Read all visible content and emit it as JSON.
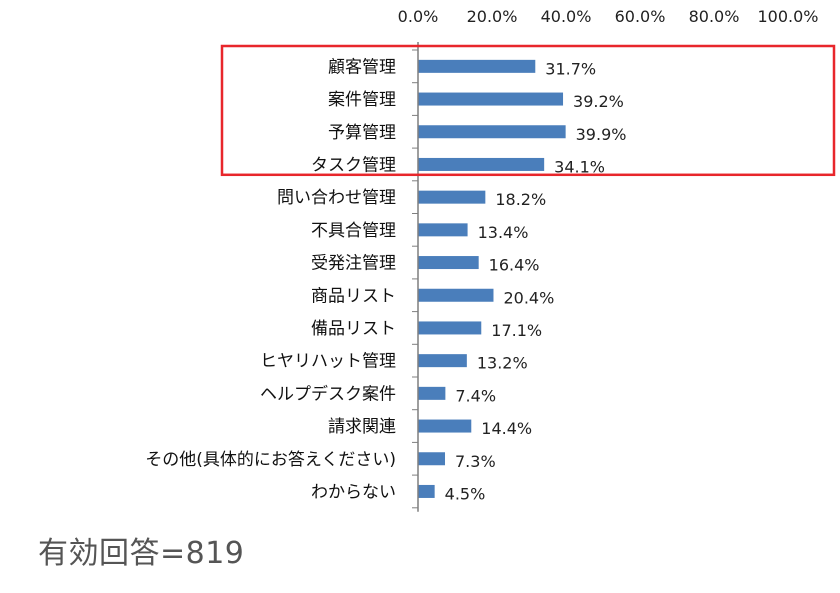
{
  "colors": {
    "bar": "#4a7ebb",
    "highlight_box": "#e8262b",
    "axis": "#7f7f7f",
    "text": "#222222",
    "footnote": "#555555"
  },
  "footnote": "有効回答=819",
  "chart_data": {
    "type": "bar",
    "orientation": "horizontal",
    "xlim": [
      0,
      100
    ],
    "x_ticks": [
      "0.0%",
      "20.0%",
      "40.0%",
      "60.0%",
      "80.0%",
      "100.0%"
    ],
    "x_tick_values": [
      0,
      20,
      40,
      60,
      80,
      100
    ],
    "x_axis_position": "top",
    "grid": false,
    "categories": [
      "顧客管理",
      "案件管理",
      "予算管理",
      "タスク管理",
      "問い合わせ管理",
      "不具合管理",
      "受発注管理",
      "商品リスト",
      "備品リスト",
      "ヒヤリハット管理",
      "ヘルプデスク案件",
      "請求関連",
      "その他(具体的にお答えください)",
      "わからない"
    ],
    "values": [
      31.7,
      39.2,
      39.9,
      34.1,
      18.2,
      13.4,
      16.4,
      20.4,
      17.1,
      13.2,
      7.4,
      14.4,
      7.3,
      4.5
    ],
    "value_labels": [
      "31.7%",
      "39.2%",
      "39.9%",
      "34.1%",
      "18.2%",
      "13.4%",
      "16.4%",
      "20.4%",
      "17.1%",
      "13.2%",
      "7.4%",
      "14.4%",
      "7.3%",
      "4.5%"
    ],
    "highlighted_categories": [
      "顧客管理",
      "案件管理",
      "予算管理",
      "タスク管理"
    ]
  }
}
